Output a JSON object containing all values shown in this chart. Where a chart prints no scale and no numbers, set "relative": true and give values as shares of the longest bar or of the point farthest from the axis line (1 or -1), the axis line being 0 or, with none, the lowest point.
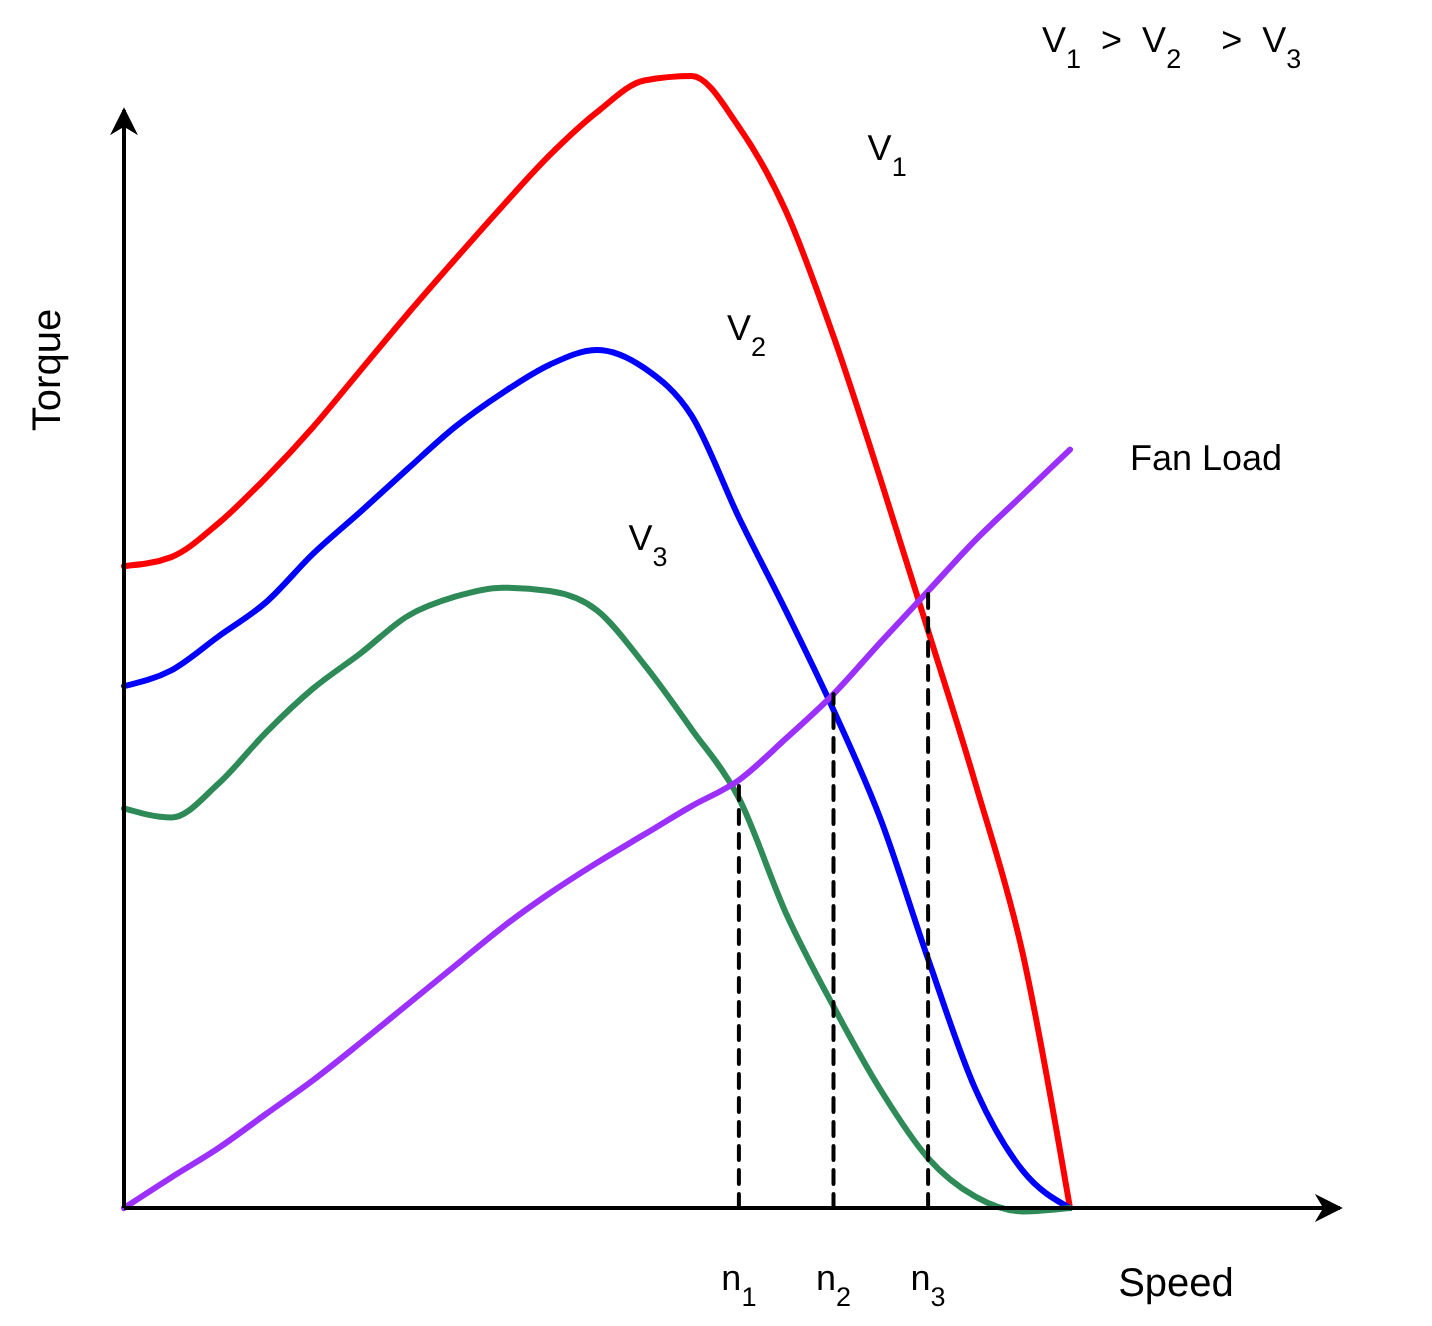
{
  "chart_data": {
    "type": "line",
    "relative": true,
    "xlabel": "Speed",
    "ylabel": "Torque",
    "tick_labels": "x",
    "marker": "none",
    "line_style": "solid",
    "categories": [
      null,
      null,
      null,
      null,
      null,
      null,
      null,
      null,
      null,
      null,
      null,
      null,
      null,
      "n$_{1}$",
      null,
      "n$_{2}$",
      null,
      "n$_{3}$",
      null,
      null,
      null,
      null,
      null,
      null,
      null,
      null
    ],
    "annotations": [
      "V$_{1}$  >  V$_{2}$    >  V$_{3}$"
    ],
    "series": [
      {
        "name": "V$_{1}$",
        "color": "#ff0000",
        "values": [
          0.567,
          0.575,
          0.605,
          0.645,
          0.69,
          0.74,
          0.79,
          0.838,
          0.885,
          0.93,
          0.968,
          0.996,
          1,
          0.955,
          0.88,
          0.77,
          0.643,
          0.51,
          0.375,
          0.225,
          0,
          null,
          null,
          null,
          null,
          null
        ]
      },
      {
        "name": "V$_{2}$",
        "color": "#0000ff",
        "values": [
          0.461,
          0.475,
          0.505,
          0.535,
          0.578,
          0.615,
          0.653,
          0.69,
          0.72,
          0.745,
          0.758,
          0.742,
          0.7,
          0.61,
          0.527,
          0.44,
          0.343,
          0.22,
          0.105,
          0.033,
          0,
          null,
          null,
          null,
          null,
          null
        ]
      },
      {
        "name": "V$_{3}$",
        "color": "#2e8b57",
        "values": [
          0.353,
          0.345,
          0.375,
          0.42,
          0.459,
          0.49,
          0.523,
          0.54,
          0.548,
          0.545,
          0.528,
          0.48,
          0.423,
          0.362,
          0.26,
          0.178,
          0.104,
          0.044,
          0.01,
          -0.003,
          0,
          null,
          null,
          null,
          null,
          null
        ]
      },
      {
        "name": "Fan Load",
        "color": "#9b30ff",
        "values": [
          0,
          0.027,
          0.053,
          0.083,
          0.113,
          0.146,
          0.18,
          0.214,
          0.248,
          0.278,
          0.305,
          0.33,
          0.355,
          0.378,
          0.415,
          0.454,
          0.5,
          0.545,
          0.59,
          0.63,
          0.67,
          null,
          null,
          null,
          null,
          null
        ]
      },
      {
        "color": "#000000",
        "line_style": "dashed",
        "x": [
          "n$_{1}$",
          "n$_{1}$"
        ],
        "values": [
          0,
          0.378
        ]
      },
      {
        "color": "#000000",
        "line_style": "dashed",
        "x": [
          "n$_{2}$",
          "n$_{2}$"
        ],
        "values": [
          0,
          0.454
        ]
      },
      {
        "color": "#000000",
        "line_style": "dashed",
        "x": [
          "n$_{3}$",
          "n$_{3}$"
        ],
        "values": [
          0,
          0.545
        ]
      }
    ]
  }
}
